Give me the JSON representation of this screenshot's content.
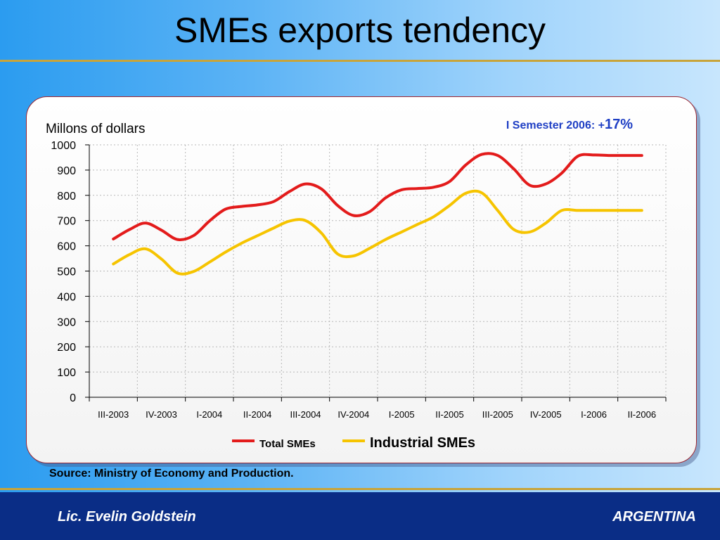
{
  "slide": {
    "title": "SMEs exports tendency",
    "source": "Source: Ministry of Economy and Production.",
    "footer_left": "Lic. Evelin Goldstein",
    "footer_right": "ARGENTINA"
  },
  "colors": {
    "total": "#e31b1b",
    "industrial": "#f6c400",
    "annotation": "#1f3fc4",
    "grid": "#b8b8b8"
  },
  "chart_data": {
    "type": "line",
    "title": "",
    "ylabel": "Millons of dollars",
    "xlabel": "",
    "ylim": [
      0,
      1000
    ],
    "yticks": [
      0,
      100,
      200,
      300,
      400,
      500,
      600,
      700,
      800,
      900,
      1000
    ],
    "grid": true,
    "legend_position": "bottom",
    "annotation": {
      "prefix": "I Semester 2006: +",
      "value": "17%"
    },
    "categories": [
      "III-2003",
      "IV-2003",
      "I-2004",
      "II-2004",
      "III-2004",
      "IV-2004",
      "I-2005",
      "II-2005",
      "III-2005",
      "IV-2005",
      "I-2006",
      "II-2006"
    ],
    "x": [
      0,
      0.333,
      0.667,
      1,
      1.333,
      1.667,
      2,
      2.333,
      2.667,
      3,
      3.333,
      3.667,
      4,
      4.333,
      4.667,
      5,
      5.333,
      5.667,
      6,
      6.333,
      6.667,
      7,
      7.333,
      7.667,
      8,
      8.333,
      8.667,
      9,
      9.333,
      9.667,
      10,
      10.333,
      10.667,
      11
    ],
    "series": [
      {
        "name": "Total SMEs",
        "values": [
          627,
          664,
          690,
          662,
          625,
          640,
          698,
          745,
          756,
          762,
          775,
          815,
          845,
          825,
          760,
          720,
          735,
          790,
          822,
          827,
          832,
          855,
          920,
          962,
          958,
          905,
          840,
          845,
          888,
          955,
          960,
          958,
          958,
          958
        ]
      },
      {
        "name": "Industrial SMEs",
        "values": [
          528,
          565,
          588,
          548,
          492,
          498,
          535,
          575,
          610,
          640,
          670,
          698,
          700,
          650,
          568,
          560,
          590,
          625,
          655,
          685,
          715,
          760,
          808,
          810,
          740,
          665,
          655,
          690,
          740,
          740,
          740,
          740,
          740,
          740
        ]
      }
    ]
  }
}
